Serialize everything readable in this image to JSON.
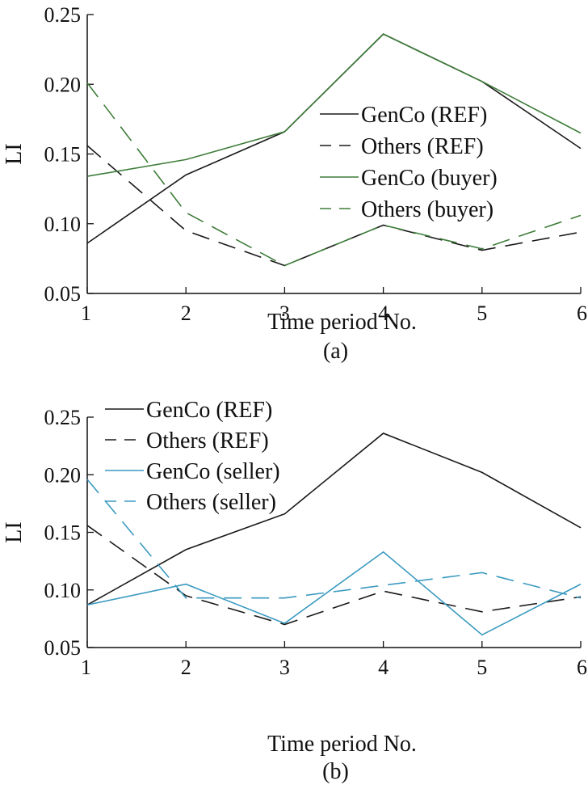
{
  "chart_data": [
    {
      "type": "line",
      "caption": "(a)",
      "xlabel": "Time period No.",
      "ylabel": "LI",
      "x": [
        1,
        2,
        3,
        4,
        5,
        6
      ],
      "xlim": [
        1,
        6
      ],
      "ylim": [
        0.05,
        0.25
      ],
      "yticks": [
        "0.05",
        "0.10",
        "0.15",
        "0.20",
        "0.25"
      ],
      "xticks": [
        "1",
        "2",
        "3",
        "4",
        "5",
        "6"
      ],
      "legend_position": "right-center",
      "series": [
        {
          "name": "GenCo (REF)",
          "color": "#1a1a1a",
          "dash": "solid",
          "values": [
            0.086,
            0.135,
            0.166,
            0.236,
            0.202,
            0.154
          ]
        },
        {
          "name": "Others (REF)",
          "color": "#1a1a1a",
          "dash": "dashed",
          "values": [
            0.156,
            0.095,
            0.07,
            0.099,
            0.081,
            0.094
          ]
        },
        {
          "name": "GenCo (buyer)",
          "color": "#3e7d3a",
          "dash": "solid",
          "values": [
            0.134,
            0.146,
            0.166,
            0.236,
            0.202,
            0.165
          ]
        },
        {
          "name": "Others (buyer)",
          "color": "#3e7d3a",
          "dash": "dashed",
          "values": [
            0.201,
            0.108,
            0.07,
            0.099,
            0.082,
            0.106
          ]
        }
      ]
    },
    {
      "type": "line",
      "caption": "(b)",
      "xlabel": "Time period No.",
      "ylabel": "LI",
      "x": [
        1,
        2,
        3,
        4,
        5,
        6
      ],
      "xlim": [
        1,
        6
      ],
      "ylim": [
        0.05,
        0.25
      ],
      "yticks": [
        "0.05",
        "0.10",
        "0.15",
        "0.20",
        "0.25"
      ],
      "xticks": [
        "1",
        "2",
        "3",
        "4",
        "5",
        "6"
      ],
      "legend_position": "top-left",
      "series": [
        {
          "name": "GenCo (REF)",
          "color": "#1a1a1a",
          "dash": "solid",
          "values": [
            0.087,
            0.135,
            0.166,
            0.236,
            0.202,
            0.154
          ]
        },
        {
          "name": "Others (REF)",
          "color": "#1a1a1a",
          "dash": "dashed",
          "values": [
            0.156,
            0.095,
            0.07,
            0.099,
            0.081,
            0.094
          ]
        },
        {
          "name": "GenCo (seller)",
          "color": "#3a9ac0",
          "dash": "solid",
          "values": [
            0.087,
            0.105,
            0.071,
            0.133,
            0.061,
            0.105
          ]
        },
        {
          "name": "Others (seller)",
          "color": "#3a9ac0",
          "dash": "dashed",
          "values": [
            0.196,
            0.093,
            0.093,
            0.104,
            0.115,
            0.093
          ]
        }
      ]
    }
  ]
}
